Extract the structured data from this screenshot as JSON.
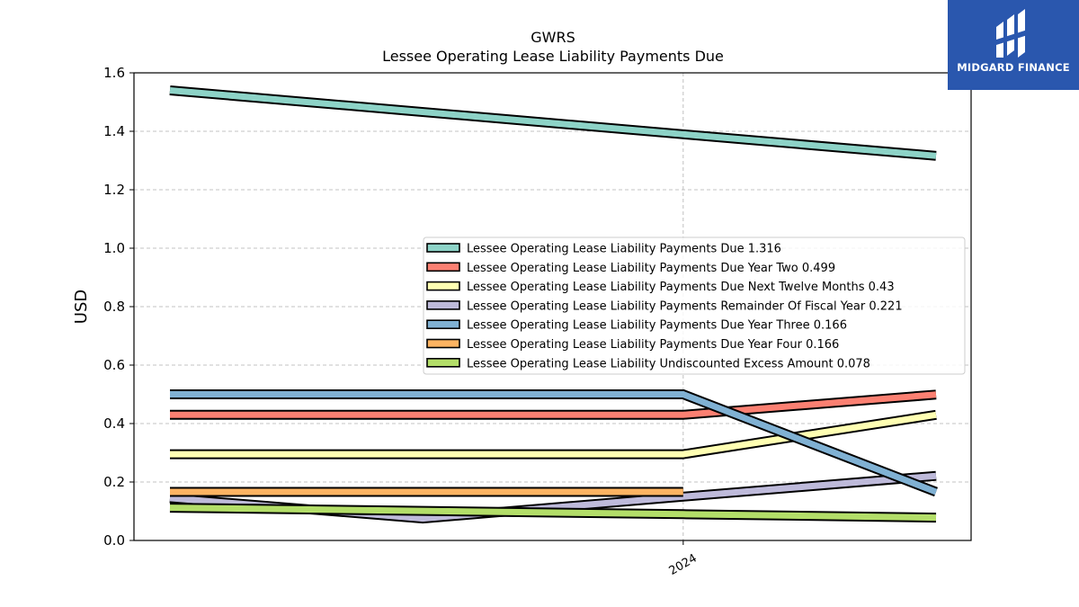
{
  "chart_data": {
    "type": "line",
    "title": "GWRS",
    "subtitle": "Lessee Operating Lease Liability Payments Due",
    "xlabel": "",
    "ylabel": "USD",
    "ylim": [
      0,
      1.6
    ],
    "yticks": [
      "0.0",
      "0.2",
      "0.4",
      "0.6",
      "0.8",
      "1.0",
      "1.2",
      "1.4",
      "1.6"
    ],
    "xticks": [
      "2024"
    ],
    "grid": true,
    "legend_position": "center-right",
    "series": [
      {
        "name": "Lessee Operating Lease Liability Payments Due  1.316",
        "color": "#8dd3c7",
        "points": [
          [
            0.0,
            1.54
          ],
          [
            0.67,
            1.39
          ],
          [
            1.0,
            1.316
          ]
        ]
      },
      {
        "name": "Lessee Operating Lease Liability Payments Due Year Two  0.499",
        "color": "#fb8072",
        "points": [
          [
            0.0,
            0.43
          ],
          [
            0.67,
            0.43
          ],
          [
            1.0,
            0.499
          ]
        ]
      },
      {
        "name": "Lessee Operating Lease Liability Payments Due Next Twelve Months  0.43",
        "color": "#ffffb3",
        "points": [
          [
            0.0,
            0.295
          ],
          [
            0.67,
            0.295
          ],
          [
            1.0,
            0.43
          ]
        ]
      },
      {
        "name": "Lessee Operating Lease Liability Payments Remainder Of Fiscal Year  0.221",
        "color": "#bebada",
        "points": [
          [
            0.0,
            0.145
          ],
          [
            0.33,
            0.075
          ],
          [
            0.67,
            0.15
          ],
          [
            1.0,
            0.221
          ]
        ]
      },
      {
        "name": "Lessee Operating Lease Liability Payments Due Year Three  0.166",
        "color": "#80b1d3",
        "points": [
          [
            0.0,
            0.5
          ],
          [
            0.67,
            0.5
          ],
          [
            1.0,
            0.166
          ]
        ]
      },
      {
        "name": "Lessee Operating Lease Liability Payments Due Year Four  0.166",
        "color": "#fdb462",
        "points": [
          [
            0.0,
            0.166
          ],
          [
            0.67,
            0.166
          ]
        ]
      },
      {
        "name": "Lessee Operating Lease Liability Undiscounted Excess Amount  0.078",
        "color": "#b3de69",
        "points": [
          [
            0.0,
            0.112
          ],
          [
            0.67,
            0.09
          ],
          [
            1.0,
            0.078
          ]
        ]
      }
    ]
  },
  "logo": {
    "text": "MIDGARD FINANCE",
    "color": "#2a57ae"
  }
}
